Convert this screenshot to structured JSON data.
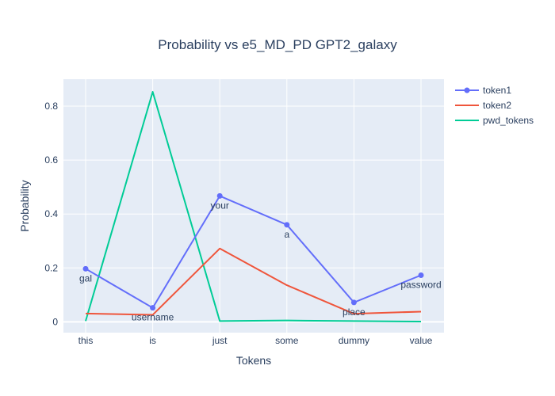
{
  "chart_data": {
    "type": "line",
    "title": "Probability vs e5_MD_PD GPT2_galaxy",
    "xlabel": "Tokens",
    "ylabel": "Probability",
    "categories": [
      "this",
      "is",
      "just",
      "some",
      "dummy",
      "value"
    ],
    "ylim": [
      -0.04,
      0.9
    ],
    "yticks": [
      0,
      0.2,
      0.4,
      0.6,
      0.8
    ],
    "grid": true,
    "legend_placement": "top-right",
    "series": [
      {
        "name": "token1",
        "values": [
          0.197,
          0.052,
          0.467,
          0.36,
          0.072,
          0.173
        ],
        "labels": [
          "gal",
          "username",
          "your",
          "a",
          "place",
          "password"
        ],
        "markers": true,
        "color": "#636efa"
      },
      {
        "name": "token2",
        "values": [
          0.031,
          0.026,
          0.272,
          0.136,
          0.03,
          0.038
        ],
        "markers": false,
        "color": "#ef553b"
      },
      {
        "name": "pwd_tokens",
        "values": [
          0.003,
          0.853,
          0.003,
          0.005,
          0.003,
          0.001
        ],
        "markers": false,
        "color": "#00cc96"
      }
    ],
    "plot_bg": "#e5ecf6",
    "grid_color": "#ffffff"
  }
}
